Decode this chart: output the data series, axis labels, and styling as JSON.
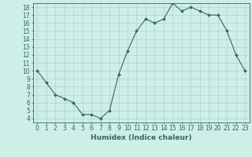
{
  "x": [
    0,
    1,
    2,
    3,
    4,
    5,
    6,
    7,
    8,
    9,
    10,
    11,
    12,
    13,
    14,
    15,
    16,
    17,
    18,
    19,
    20,
    21,
    22,
    23
  ],
  "y": [
    10,
    8.5,
    7,
    6.5,
    6,
    4.5,
    4.5,
    4,
    5,
    9.5,
    12.5,
    15,
    16.5,
    16,
    16.5,
    18.5,
    17.5,
    18,
    17.5,
    17,
    17,
    15,
    12,
    10
  ],
  "line_color": "#2e6b5e",
  "marker": "D",
  "marker_size": 2,
  "bg_color": "#ceeee8",
  "grid_color": "#aed4ce",
  "xlabel": "Humidex (Indice chaleur)",
  "xlim": [
    -0.5,
    23.5
  ],
  "ylim": [
    3.5,
    18.5
  ],
  "xticks": [
    0,
    1,
    2,
    3,
    4,
    5,
    6,
    7,
    8,
    9,
    10,
    11,
    12,
    13,
    14,
    15,
    16,
    17,
    18,
    19,
    20,
    21,
    22,
    23
  ],
  "yticks": [
    4,
    5,
    6,
    7,
    8,
    9,
    10,
    11,
    12,
    13,
    14,
    15,
    16,
    17,
    18
  ],
  "tick_label_fontsize": 5.5,
  "xlabel_fontsize": 6.5,
  "axis_color": "#2e6b5e",
  "tick_color": "#2e6b5e"
}
